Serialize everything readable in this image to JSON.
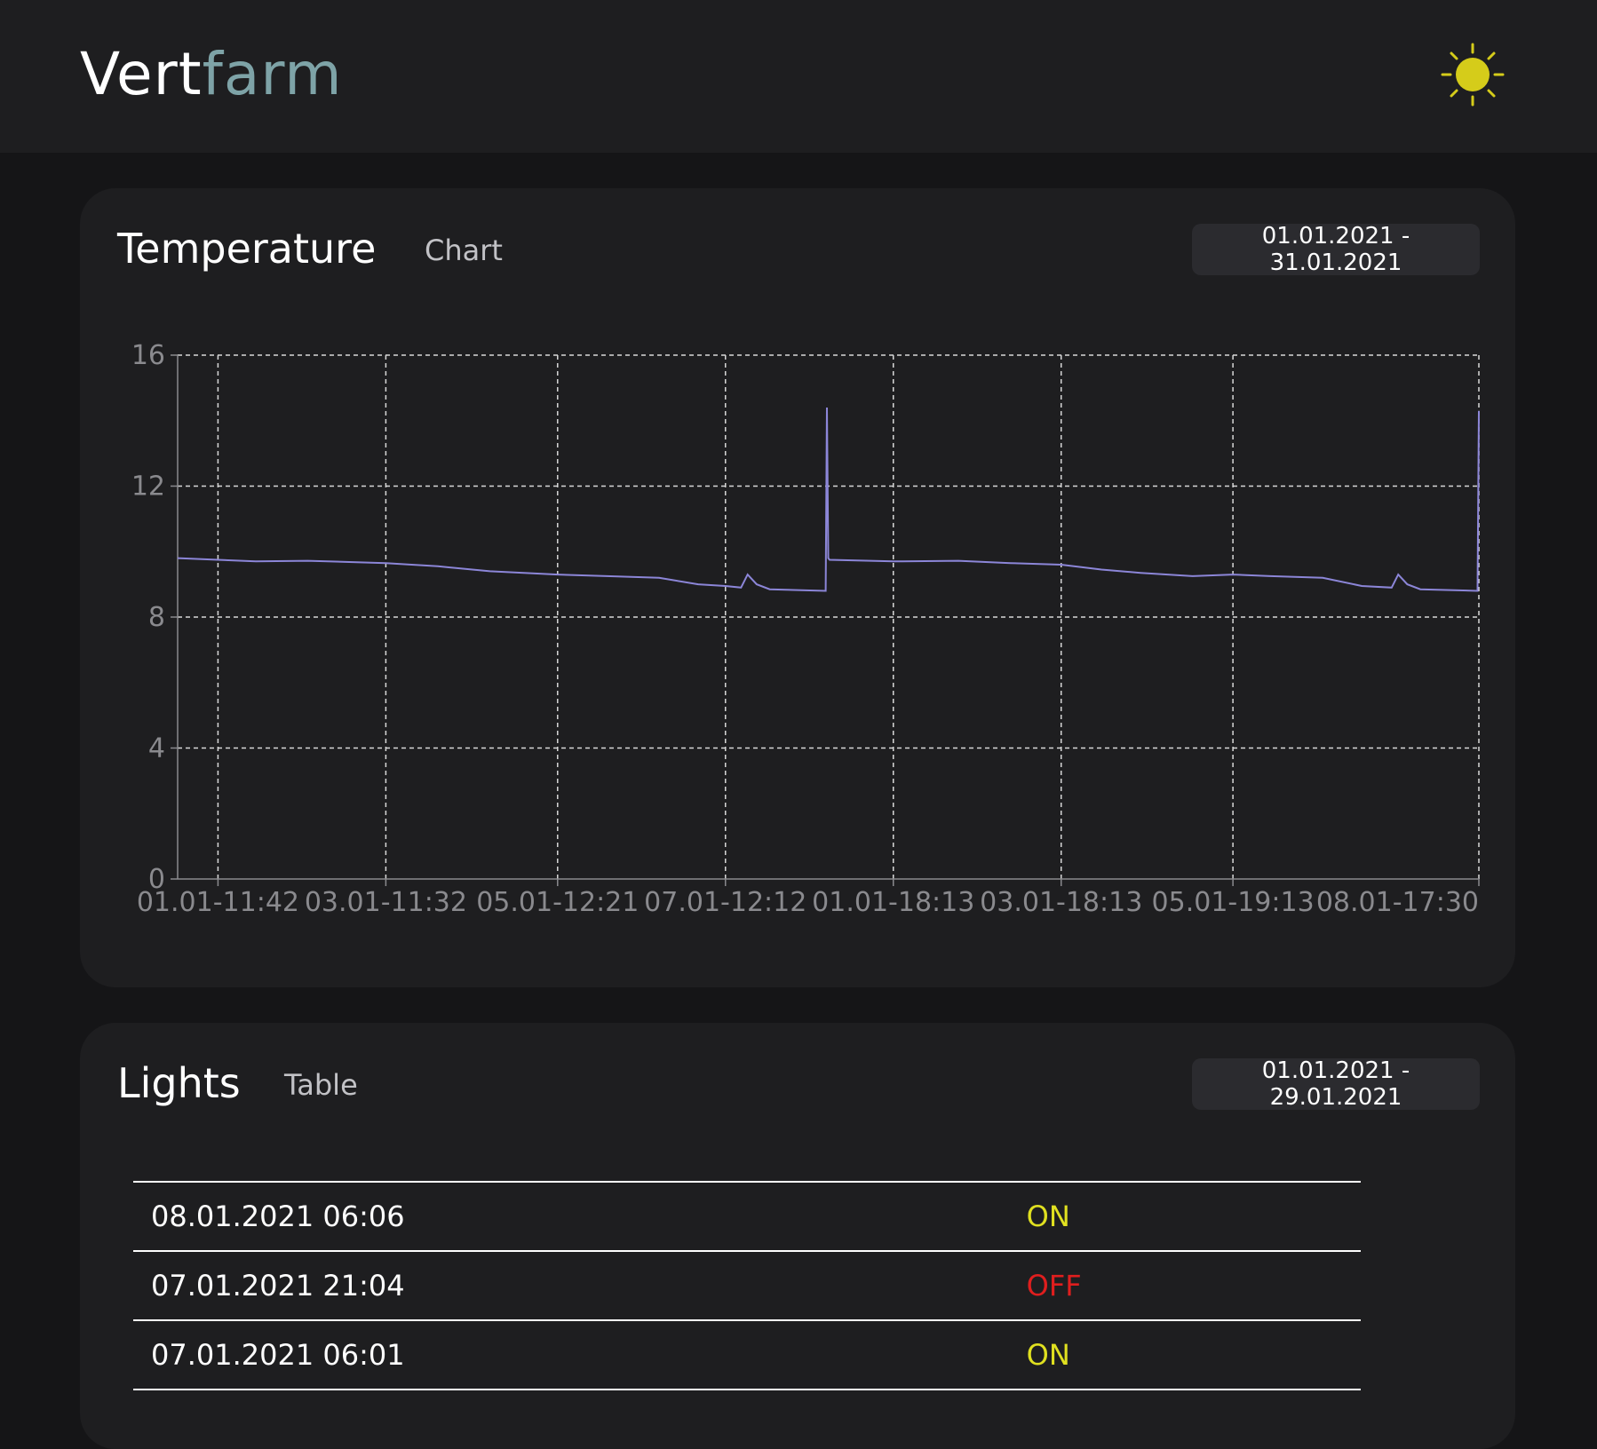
{
  "app": {
    "brand_part1": "Vert",
    "brand_part2": "farm",
    "theme_icon": "sun-icon"
  },
  "colors": {
    "background": "#151517",
    "panel": "#1e1e20",
    "accent_brand": "#7ea3a7",
    "sun": "#d5cc1a",
    "series_line": "#8c86d8",
    "status_on": "#e0e020",
    "status_off": "#e01e1e"
  },
  "temperature": {
    "title": "Temperature",
    "view_label": "Chart",
    "date_range": "01.01.2021 - 31.01.2021"
  },
  "lights": {
    "title": "Lights",
    "view_label": "Table",
    "date_range": "01.01.2021 - 29.01.2021",
    "rows": [
      {
        "time": "08.01.2021 06:06",
        "status": "ON"
      },
      {
        "time": "07.01.2021 21:04",
        "status": "OFF"
      },
      {
        "time": "07.01.2021 06:01",
        "status": "ON"
      }
    ]
  },
  "chart_data": {
    "type": "line",
    "title": "",
    "xlabel": "",
    "ylabel": "",
    "ylim": [
      0,
      16
    ],
    "yticks": [
      0,
      4,
      8,
      12,
      16
    ],
    "xlim": [
      0,
      100
    ],
    "categories": [
      "01.01-11:42",
      "03.01-11:32",
      "05.01-12:21",
      "07.01-12:12",
      "01.01-18:13",
      "03.01-18:13",
      "05.01-19:13",
      "08.01-17:30"
    ],
    "category_positions": [
      3.1,
      16.0,
      29.2,
      42.1,
      55.0,
      67.9,
      81.1,
      100.0
    ],
    "grid": true,
    "legend": "none",
    "series": [
      {
        "x": [
          0,
          3.1,
          6,
          10,
          16,
          20,
          24,
          29.2,
          33,
          37,
          40,
          42.1,
          43.3,
          43.8,
          44.5,
          45.5,
          49.8,
          49.9,
          50,
          50.1,
          55,
          60,
          64,
          67.9,
          71,
          74,
          78,
          81.1,
          84,
          88,
          91,
          93.3,
          93.8,
          94.5,
          95.5,
          99.9,
          100
        ],
        "y": [
          9.8,
          9.75,
          9.7,
          9.72,
          9.65,
          9.55,
          9.4,
          9.3,
          9.25,
          9.2,
          9.0,
          8.95,
          8.9,
          9.3,
          9.0,
          8.85,
          8.8,
          14.4,
          9.8,
          9.75,
          9.7,
          9.72,
          9.65,
          9.6,
          9.45,
          9.35,
          9.25,
          9.3,
          9.25,
          9.2,
          8.95,
          8.9,
          9.3,
          9.0,
          8.85,
          8.8,
          14.3
        ]
      }
    ]
  }
}
